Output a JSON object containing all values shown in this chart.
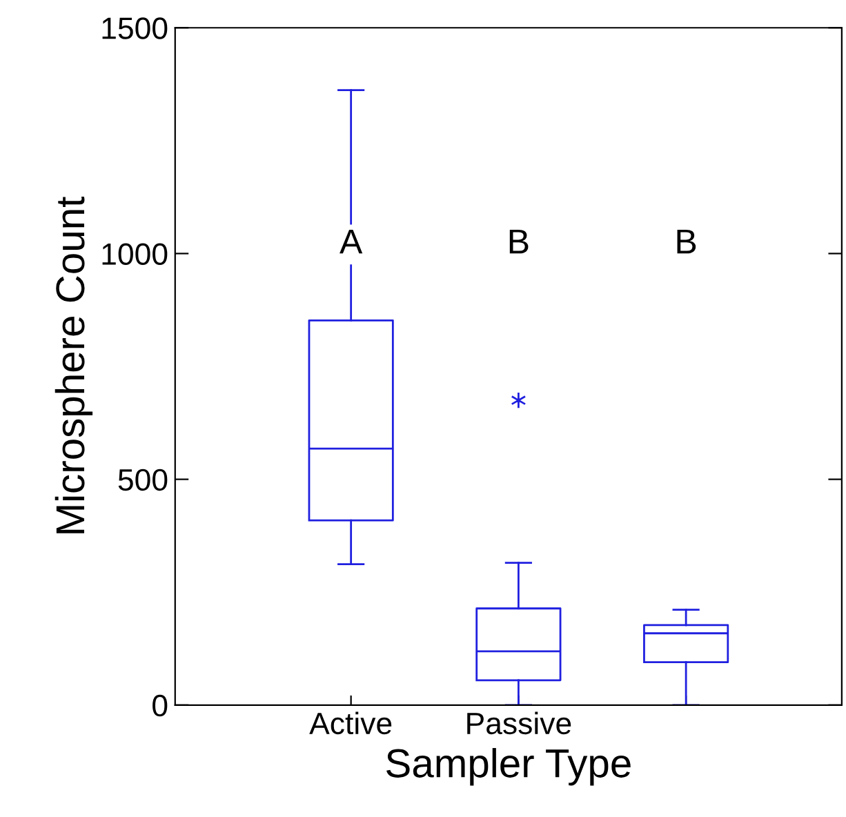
{
  "chart_data": {
    "type": "box",
    "xlabel": "Sampler Type",
    "ylabel": "Microsphere Count",
    "categories": [
      "Active",
      "Passive",
      null
    ],
    "series": [
      {
        "color": "#1f1fe0",
        "boxes": [
          {
            "low": 312,
            "q1": 409,
            "median": 568,
            "q3": 852,
            "high": 1362
          },
          {
            "low": 0,
            "q1": 55,
            "median": 119,
            "q3": 214,
            "high": 315,
            "outliers": [
              675
            ]
          },
          {
            "low": 0,
            "q1": 95,
            "median": 159,
            "q3": 177,
            "high": 211
          }
        ]
      }
    ],
    "ylim": [
      0,
      1500
    ],
    "yticks": [
      0,
      500,
      1000,
      1500
    ],
    "annotations": [
      "A",
      "B",
      "B"
    ],
    "grid": false,
    "legend": false
  }
}
